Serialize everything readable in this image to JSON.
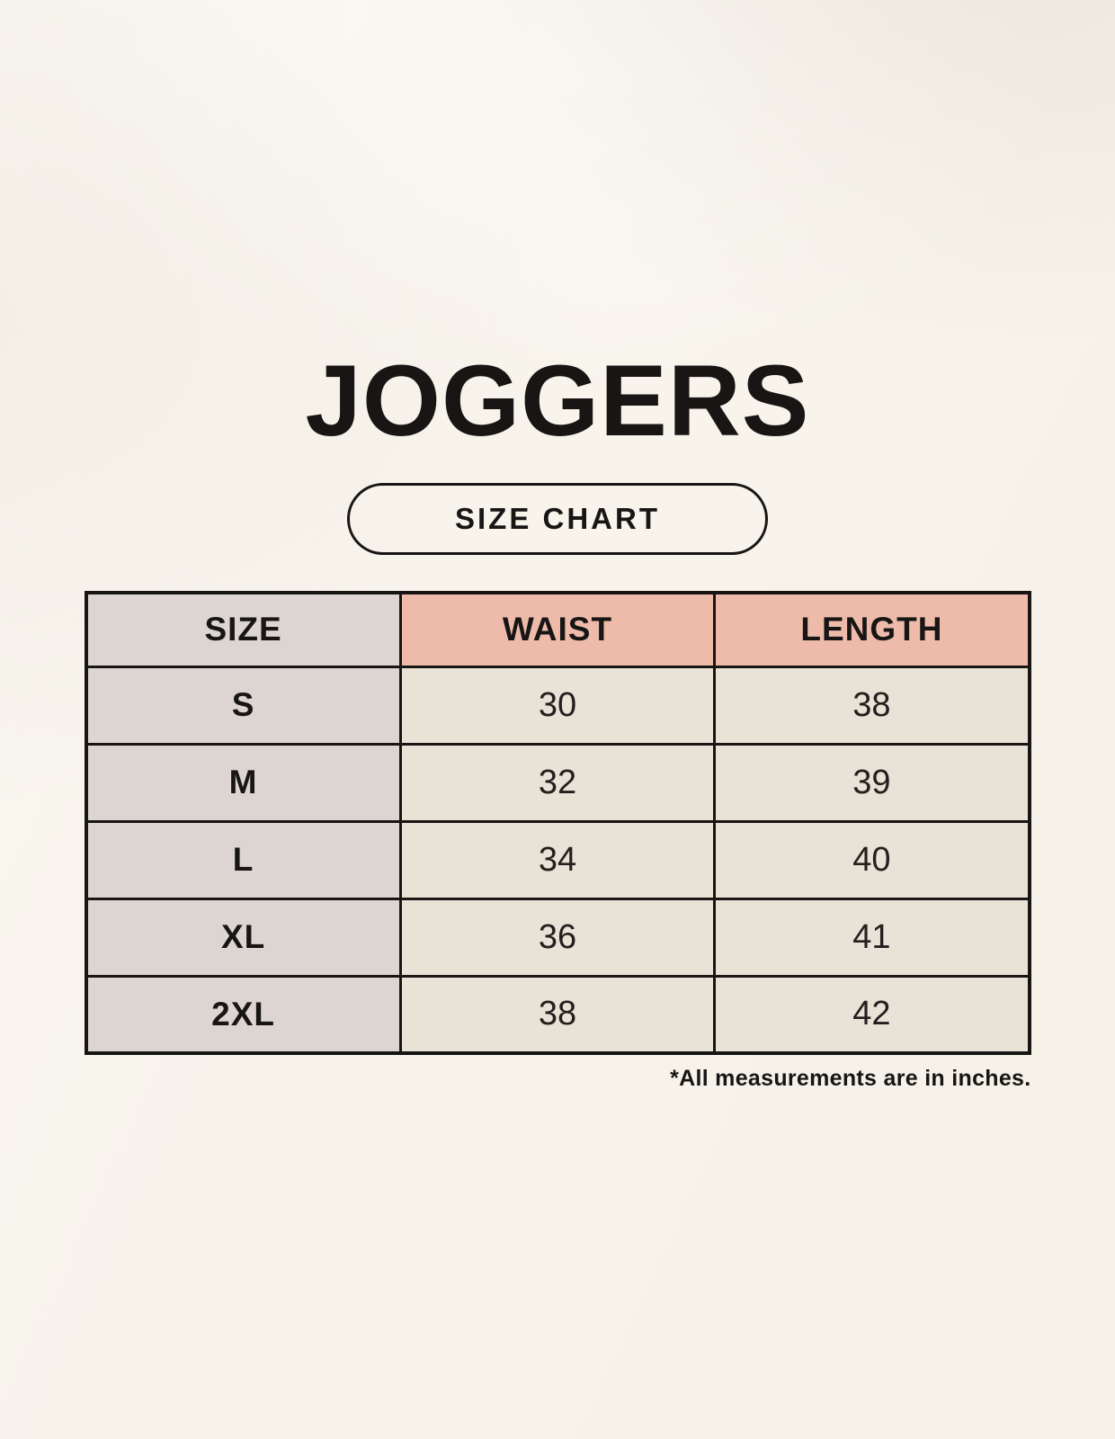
{
  "header": {
    "title": "JOGGERS",
    "badge_label": "SIZE CHART"
  },
  "footnote": "*All measurements are in inches.",
  "colors": {
    "background": "#f8f4ec",
    "table_label_bg": "#ddd5d1",
    "table_header_accent_bg": "#eebbab",
    "table_value_bg": "#e9e2d6",
    "border_ink": "#181614",
    "text_ink": "#181614"
  },
  "chart_data": {
    "type": "table",
    "title": "JOGGERS",
    "subtitle": "SIZE CHART",
    "columns": [
      "SIZE",
      "WAIST",
      "LENGTH"
    ],
    "rows": [
      [
        "S",
        30,
        38
      ],
      [
        "M",
        32,
        39
      ],
      [
        "L",
        34,
        40
      ],
      [
        "XL",
        36,
        41
      ],
      [
        "2XL",
        38,
        42
      ]
    ],
    "units": "inches",
    "note": "*All measurements are in inches.",
    "layout": {
      "header_accent_columns": [
        "WAIST",
        "LENGTH"
      ],
      "label_column": "SIZE",
      "grid": true
    }
  }
}
